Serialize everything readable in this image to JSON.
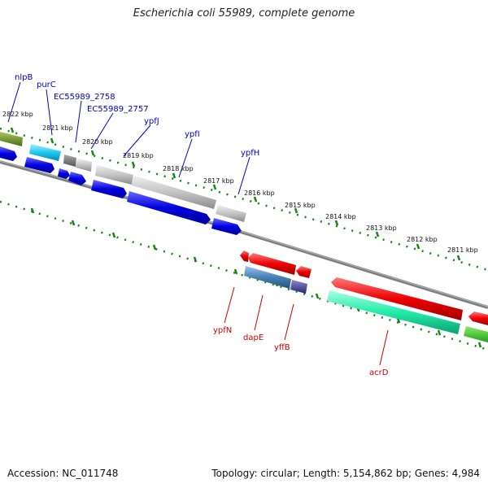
{
  "title": "Escherichia coli 55989, complete genome",
  "footer": {
    "accession": "Accession: NC_011748",
    "topology": "Topology: circular; Length: 5,154,862 bp; Genes: 4,984"
  },
  "colors": {
    "forward_label": "#0000cc",
    "reverse_label": "#cc0000",
    "tick": "#118811",
    "backbone": "#808080"
  },
  "kbp_labels": [
    "2822 kbp",
    "2821 kbp",
    "2820 kbp",
    "2819 kbp",
    "2818 kbp",
    "2817 kbp",
    "2816 kbp",
    "2815 kbp",
    "2814 kbp",
    "2813 kbp",
    "2812 kbp",
    "2811 kbp"
  ],
  "forward_genes": [
    "nlpB",
    "purC",
    "EC55989_2758",
    "EC55989_2757",
    "ypfJ",
    "ypfI",
    "ypfH"
  ],
  "reverse_genes": [
    "ypfN",
    "dapE",
    "yffB",
    "acrD"
  ]
}
